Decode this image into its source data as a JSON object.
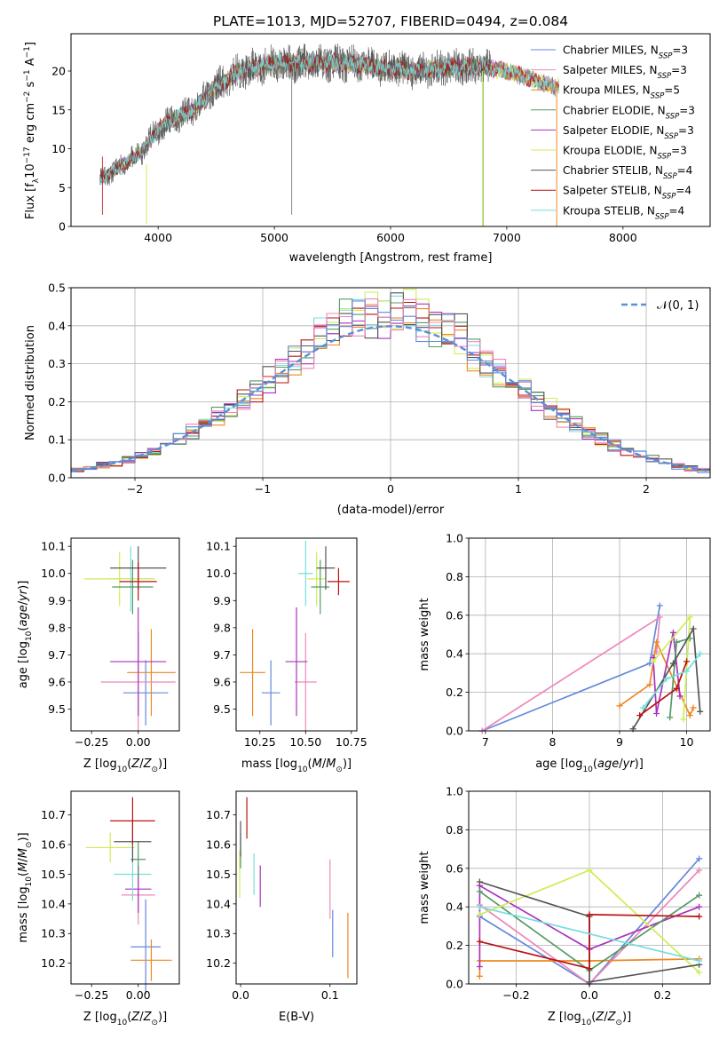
{
  "chart_data": [
    {
      "id": "spectrum",
      "type": "line",
      "title": "PLATE=1013, MJD=52707, FIBERID=0494, z=0.084",
      "xlabel": "wavelength [Angstrom, rest frame]",
      "ylabel": "Flux [f_λ10^-17 erg cm^-2 s^-1 A^-1]",
      "xlim": [
        3250,
        8750
      ],
      "ylim": [
        0,
        24.8
      ],
      "xticks": [
        "4000",
        "5000",
        "6000",
        "7000",
        "8000"
      ],
      "yticks": [
        "0",
        "5",
        "10",
        "15",
        "20"
      ],
      "grid": false,
      "legend_position": "right",
      "continuum": {
        "x": [
          3500,
          3700,
          3850,
          3950,
          4000,
          4100,
          4300,
          4500,
          4700,
          5000,
          5300,
          5600,
          5900,
          6200,
          6500,
          6800,
          7000,
          7200,
          7400
        ],
        "y": [
          6,
          8,
          9.5,
          11.5,
          12.5,
          13.5,
          15,
          18,
          20,
          21,
          21,
          21,
          20.5,
          20,
          20.5,
          20.5,
          20,
          19,
          18
        ]
      },
      "series": [
        {
          "name": "Chabrier MILES, N_SSP=3",
          "color": "#6688dd"
        },
        {
          "name": "Salpeter MILES, N_SSP=3",
          "color": "#ee88bb"
        },
        {
          "name": "Kroupa MILES, N_SSP=5",
          "color": "#ee8822"
        },
        {
          "name": "Chabrier ELODIE, N_SSP=3",
          "color": "#559966"
        },
        {
          "name": "Salpeter ELODIE, N_SSP=3",
          "color": "#aa33bb"
        },
        {
          "name": "Kroupa ELODIE, N_SSP=3",
          "color": "#ccee55"
        },
        {
          "name": "Chabrier STELIB, N_SSP=4",
          "color": "#555555"
        },
        {
          "name": "Salpeter STELIB, N_SSP=4",
          "color": "#bb1111"
        },
        {
          "name": "Kroupa STELIB, N_SSP=4",
          "color": "#77dddd"
        }
      ]
    },
    {
      "id": "residuals",
      "type": "step",
      "xlabel": "(data-model)/error",
      "ylabel": "Normed distribution",
      "xlim": [
        -2.5,
        2.5
      ],
      "ylim": [
        0,
        0.5
      ],
      "xticks": [
        "−2",
        "−1",
        "0",
        "1",
        "2"
      ],
      "yticks": [
        "0.0",
        "0.1",
        "0.2",
        "0.3",
        "0.4",
        "0.5"
      ],
      "grid": true,
      "legend": "𝒩(0, 1)",
      "legend_position": "top-right",
      "reference_curve": "normal pdf mean 0 sigma 1",
      "bin_width": 0.1,
      "histogram_colors": [
        "#77dddd",
        "#ccee55",
        "#aa33bb",
        "#ee8822",
        "#bb1111",
        "#559966",
        "#555555",
        "#ee88bb",
        "#6688dd"
      ]
    },
    {
      "id": "age-vs-Z",
      "type": "errorbar",
      "xlabel": "Z [log10(Z/Z⊙)]",
      "ylabel": "age [log10(age/yr)]",
      "xlim": [
        -0.36,
        0.22
      ],
      "ylim": [
        9.42,
        10.13
      ],
      "xticks": [
        "−0.25",
        "0.00"
      ],
      "yticks": [
        "9.5",
        "9.6",
        "9.7",
        "9.8",
        "9.9",
        "10.0",
        "10.1"
      ],
      "points": [
        {
          "color": "#6688dd",
          "x": 0.04,
          "xerr": 0.12,
          "y": 9.56,
          "yerr": 0.12
        },
        {
          "color": "#ee8822",
          "x": 0.07,
          "xerr": 0.13,
          "y": 9.635,
          "yerr": 0.16
        },
        {
          "color": "#ee88bb",
          "x": 0.0,
          "xerr": 0.2,
          "y": 9.6,
          "yerr": 0.18
        },
        {
          "color": "#aa33bb",
          "x": 0.0,
          "xerr": 0.15,
          "y": 9.675,
          "yerr": 0.2
        },
        {
          "color": "#77dddd",
          "x": -0.04,
          "xerr": 0.12,
          "y": 9.98,
          "yerr": 0.12
        },
        {
          "color": "#ccee55",
          "x": -0.1,
          "xerr": 0.19,
          "y": 9.98,
          "yerr": 0.1
        },
        {
          "color": "#559966",
          "x": -0.03,
          "xerr": 0.11,
          "y": 9.95,
          "yerr": 0.1
        },
        {
          "color": "#555555",
          "x": 0.0,
          "xerr": 0.15,
          "y": 10.02,
          "yerr": 0.08
        },
        {
          "color": "#bb1111",
          "x": 0.0,
          "xerr": 0.1,
          "y": 9.97,
          "yerr": 0.07
        }
      ]
    },
    {
      "id": "age-vs-mass",
      "type": "errorbar",
      "xlabel": "mass [log10(M/M⊙)]",
      "xlim": [
        10.12,
        10.78
      ],
      "ylim": [
        9.42,
        10.13
      ],
      "xticks": [
        "10.25",
        "10.50",
        "10.75"
      ],
      "yticks": [
        "9.5",
        "9.6",
        "9.7",
        "9.8",
        "9.9",
        "10.0",
        "10.1"
      ],
      "points": [
        {
          "color": "#6688dd",
          "x": 10.31,
          "xerr": 0.05,
          "y": 9.56,
          "yerr": 0.12
        },
        {
          "color": "#ee8822",
          "x": 10.21,
          "xerr": 0.07,
          "y": 9.635,
          "yerr": 0.16
        },
        {
          "color": "#ee88bb",
          "x": 10.5,
          "xerr": 0.06,
          "y": 9.6,
          "yerr": 0.18
        },
        {
          "color": "#aa33bb",
          "x": 10.45,
          "xerr": 0.06,
          "y": 9.675,
          "yerr": 0.2
        },
        {
          "color": "#77dddd",
          "x": 10.5,
          "xerr": 0.04,
          "y": 10.0,
          "yerr": 0.12
        },
        {
          "color": "#ccee55",
          "x": 10.56,
          "xerr": 0.05,
          "y": 9.98,
          "yerr": 0.1
        },
        {
          "color": "#559966",
          "x": 10.58,
          "xerr": 0.05,
          "y": 9.95,
          "yerr": 0.1
        },
        {
          "color": "#555555",
          "x": 10.61,
          "xerr": 0.05,
          "y": 10.02,
          "yerr": 0.08
        },
        {
          "color": "#bb1111",
          "x": 10.68,
          "xerr": 0.06,
          "y": 9.97,
          "yerr": 0.05
        }
      ]
    },
    {
      "id": "massweight-vs-age",
      "type": "line",
      "xlabel": "age [log10(age/yr)]",
      "ylabel": "mass weight",
      "xlim": [
        6.75,
        10.35
      ],
      "ylim": [
        0,
        1
      ],
      "xticks": [
        "7",
        "8",
        "9",
        "10"
      ],
      "yticks": [
        "0.0",
        "0.2",
        "0.4",
        "0.6",
        "0.8",
        "1.0"
      ],
      "grid": true,
      "series": [
        {
          "color": "#6688dd",
          "x": [
            6.95,
            9.45,
            9.6
          ],
          "y": [
            0.0,
            0.35,
            0.65
          ]
        },
        {
          "color": "#ee88bb",
          "x": [
            6.95,
            9.6,
            9.55
          ],
          "y": [
            0.0,
            0.59,
            0.41
          ]
        },
        {
          "color": "#ee8822",
          "x": [
            9.0,
            9.45,
            9.55,
            10.05,
            10.1
          ],
          "y": [
            0.13,
            0.24,
            0.46,
            0.08,
            0.12
          ]
        },
        {
          "color": "#aa33bb",
          "x": [
            9.5,
            9.55,
            9.8,
            9.9
          ],
          "y": [
            0.38,
            0.09,
            0.51,
            0.18
          ]
        },
        {
          "color": "#559966",
          "x": [
            9.75,
            9.85,
            10.05
          ],
          "y": [
            0.07,
            0.46,
            0.48
          ]
        },
        {
          "color": "#ccee55",
          "x": [
            9.95,
            10.05,
            9.5
          ],
          "y": [
            0.06,
            0.59,
            0.36
          ]
        },
        {
          "color": "#555555",
          "x": [
            9.2,
            9.8,
            10.1,
            10.2
          ],
          "y": [
            0.01,
            0.35,
            0.53,
            0.1
          ]
        },
        {
          "color": "#bb1111",
          "x": [
            9.3,
            9.85,
            10.0
          ],
          "y": [
            0.08,
            0.22,
            0.36
          ]
        },
        {
          "color": "#77dddd",
          "x": [
            9.35,
            9.7,
            10.0,
            10.2
          ],
          "y": [
            0.12,
            0.27,
            0.31,
            0.4
          ]
        }
      ]
    },
    {
      "id": "mass-vs-Z",
      "type": "errorbar",
      "xlabel": "Z [log10(Z/Z⊙)]",
      "ylabel": "mass [log10(M/M⊙)]",
      "xlim": [
        -0.36,
        0.22
      ],
      "ylim": [
        10.13,
        10.78
      ],
      "xticks": [
        "−0.25",
        "0.00"
      ],
      "yticks": [
        "10.2",
        "10.3",
        "10.4",
        "10.5",
        "10.6",
        "10.7"
      ],
      "points": [
        {
          "color": "#6688dd",
          "x": 0.04,
          "xerr": 0.08,
          "y": 10.255,
          "yerr": 0.16
        },
        {
          "color": "#ee8822",
          "x": 0.07,
          "xerr": 0.11,
          "y": 10.21,
          "yerr": 0.07
        },
        {
          "color": "#ee88bb",
          "x": 0.0,
          "xerr": 0.09,
          "y": 10.43,
          "yerr": 0.1
        },
        {
          "color": "#aa33bb",
          "x": 0.0,
          "xerr": 0.07,
          "y": 10.45,
          "yerr": 0.08
        },
        {
          "color": "#77dddd",
          "x": -0.03,
          "xerr": 0.1,
          "y": 10.5,
          "yerr": 0.09
        },
        {
          "color": "#ccee55",
          "x": -0.15,
          "xerr": 0.13,
          "y": 10.59,
          "yerr": 0.05
        },
        {
          "color": "#559966",
          "x": 0.0,
          "xerr": 0.04,
          "y": 10.55,
          "yerr": 0.06
        },
        {
          "color": "#555555",
          "x": -0.03,
          "xerr": 0.1,
          "y": 10.61,
          "yerr": 0.07
        },
        {
          "color": "#bb1111",
          "x": -0.03,
          "xerr": 0.12,
          "y": 10.68,
          "yerr": 0.08
        }
      ]
    },
    {
      "id": "mass-vs-ebv",
      "type": "errorbar",
      "xlabel": "E(B-V)",
      "xlim": [
        -0.005,
        0.13
      ],
      "ylim": [
        10.13,
        10.78
      ],
      "xticks": [
        "0.0",
        "0.1"
      ],
      "yticks": [
        "10.2",
        "10.3",
        "10.4",
        "10.5",
        "10.6",
        "10.7"
      ],
      "points": [
        {
          "color": "#6688dd",
          "x": 0.103,
          "y": 10.3,
          "yerr": 0.08
        },
        {
          "color": "#ee8822",
          "x": 0.12,
          "y": 10.26,
          "yerr": 0.11
        },
        {
          "color": "#ee88bb",
          "x": 0.1,
          "y": 10.45,
          "yerr": 0.1
        },
        {
          "color": "#aa33bb",
          "x": 0.022,
          "y": 10.46,
          "yerr": 0.07
        },
        {
          "color": "#77dddd",
          "x": 0.015,
          "y": 10.5,
          "yerr": 0.07
        },
        {
          "color": "#ccee55",
          "x": -0.001,
          "y": 10.5,
          "yerr": 0.08
        },
        {
          "color": "#559966",
          "x": 0.0,
          "y": 10.58,
          "yerr": 0.06
        },
        {
          "color": "#555555",
          "x": 0.0,
          "y": 10.62,
          "yerr": 0.06
        },
        {
          "color": "#bb1111",
          "x": 0.007,
          "y": 10.69,
          "yerr": 0.07
        }
      ]
    },
    {
      "id": "massweight-vs-Z",
      "type": "line",
      "xlabel": "Z [log10(Z/Z⊙)]",
      "ylabel": "mass weight",
      "xlim": [
        -0.33,
        0.33
      ],
      "ylim": [
        0,
        1
      ],
      "xticks": [
        "−0.2",
        "0.0",
        "0.2"
      ],
      "yticks": [
        "0.0",
        "0.2",
        "0.4",
        "0.6",
        "0.8",
        "1.0"
      ],
      "grid": true,
      "series": [
        {
          "color": "#6688dd",
          "x": [
            -0.3,
            0.0,
            0.3
          ],
          "y": [
            0.35,
            0.0,
            0.65
          ]
        },
        {
          "color": "#ee88bb",
          "x": [
            -0.3,
            0.0,
            0.3
          ],
          "y": [
            0.41,
            0.0,
            0.59
          ]
        },
        {
          "color": "#ee8822",
          "x": [
            -0.3,
            -0.3,
            0.0,
            0.3
          ],
          "y": [
            0.04,
            0.12,
            0.12,
            0.13
          ]
        },
        {
          "color": "#aa33bb",
          "x": [
            -0.3,
            -0.3,
            0.0,
            0.3
          ],
          "y": [
            0.09,
            0.51,
            0.18,
            0.4
          ]
        },
        {
          "color": "#559966",
          "x": [
            -0.3,
            0.0,
            0.3
          ],
          "y": [
            0.48,
            0.07,
            0.46
          ]
        },
        {
          "color": "#ccee55",
          "x": [
            -0.3,
            0.0,
            0.3
          ],
          "y": [
            0.36,
            0.59,
            0.06
          ]
        },
        {
          "color": "#555555",
          "x": [
            -0.3,
            0.0,
            0.0,
            0.3
          ],
          "y": [
            0.53,
            0.35,
            0.01,
            0.1
          ]
        },
        {
          "color": "#bb1111",
          "x": [
            -0.3,
            0.0,
            0.0,
            0.3
          ],
          "y": [
            0.22,
            0.08,
            0.36,
            0.35
          ]
        },
        {
          "color": "#77dddd",
          "x": [
            -0.3,
            0.3
          ],
          "y": [
            0.4,
            0.12
          ]
        }
      ]
    }
  ]
}
